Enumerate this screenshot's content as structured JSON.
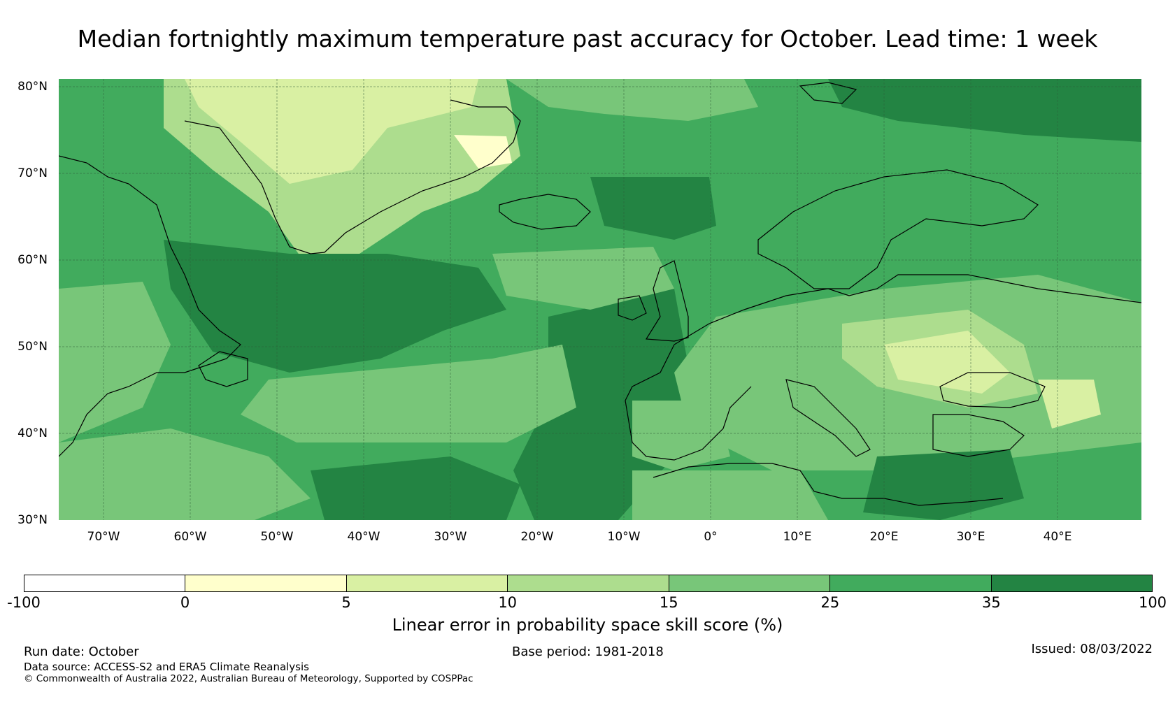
{
  "title": "Median fortnightly maximum temperature past accuracy for October. Lead time: 1 week",
  "map": {
    "latitude_labels": [
      "80°N",
      "70°N",
      "60°N",
      "50°N",
      "40°N",
      "30°N"
    ],
    "longitude_labels": [
      "70°W",
      "60°W",
      "50°W",
      "40°W",
      "30°W",
      "20°W",
      "10°W",
      "0°",
      "10°E",
      "20°E",
      "30°E",
      "40°E"
    ],
    "extent": {
      "lon_min": -75,
      "lon_max": 50,
      "lat_min": 30,
      "lat_max": 81
    },
    "description_colors": {
      "land_outline": "#000000",
      "gridline": "#2d5a38"
    }
  },
  "legend": {
    "label": "Linear error in probability space skill score (%)",
    "ticks": [
      "-100",
      "0",
      "5",
      "10",
      "15",
      "25",
      "35",
      "100"
    ],
    "colors": [
      "#ffffff",
      "#ffffcc",
      "#d9f0a3",
      "#addd8e",
      "#78c679",
      "#41ab5d",
      "#238443"
    ]
  },
  "footer": {
    "run_date": "Run date: October",
    "base_period": "Base period: 1981-2018",
    "issued": "Issued: 08/03/2022",
    "data_source": "Data source: ACCESS-S2 and ERA5 Climate Reanalysis",
    "copyright": "© Commonwealth of Australia 2022, Australian Bureau of Meteorology, Supported by COSPPac"
  }
}
